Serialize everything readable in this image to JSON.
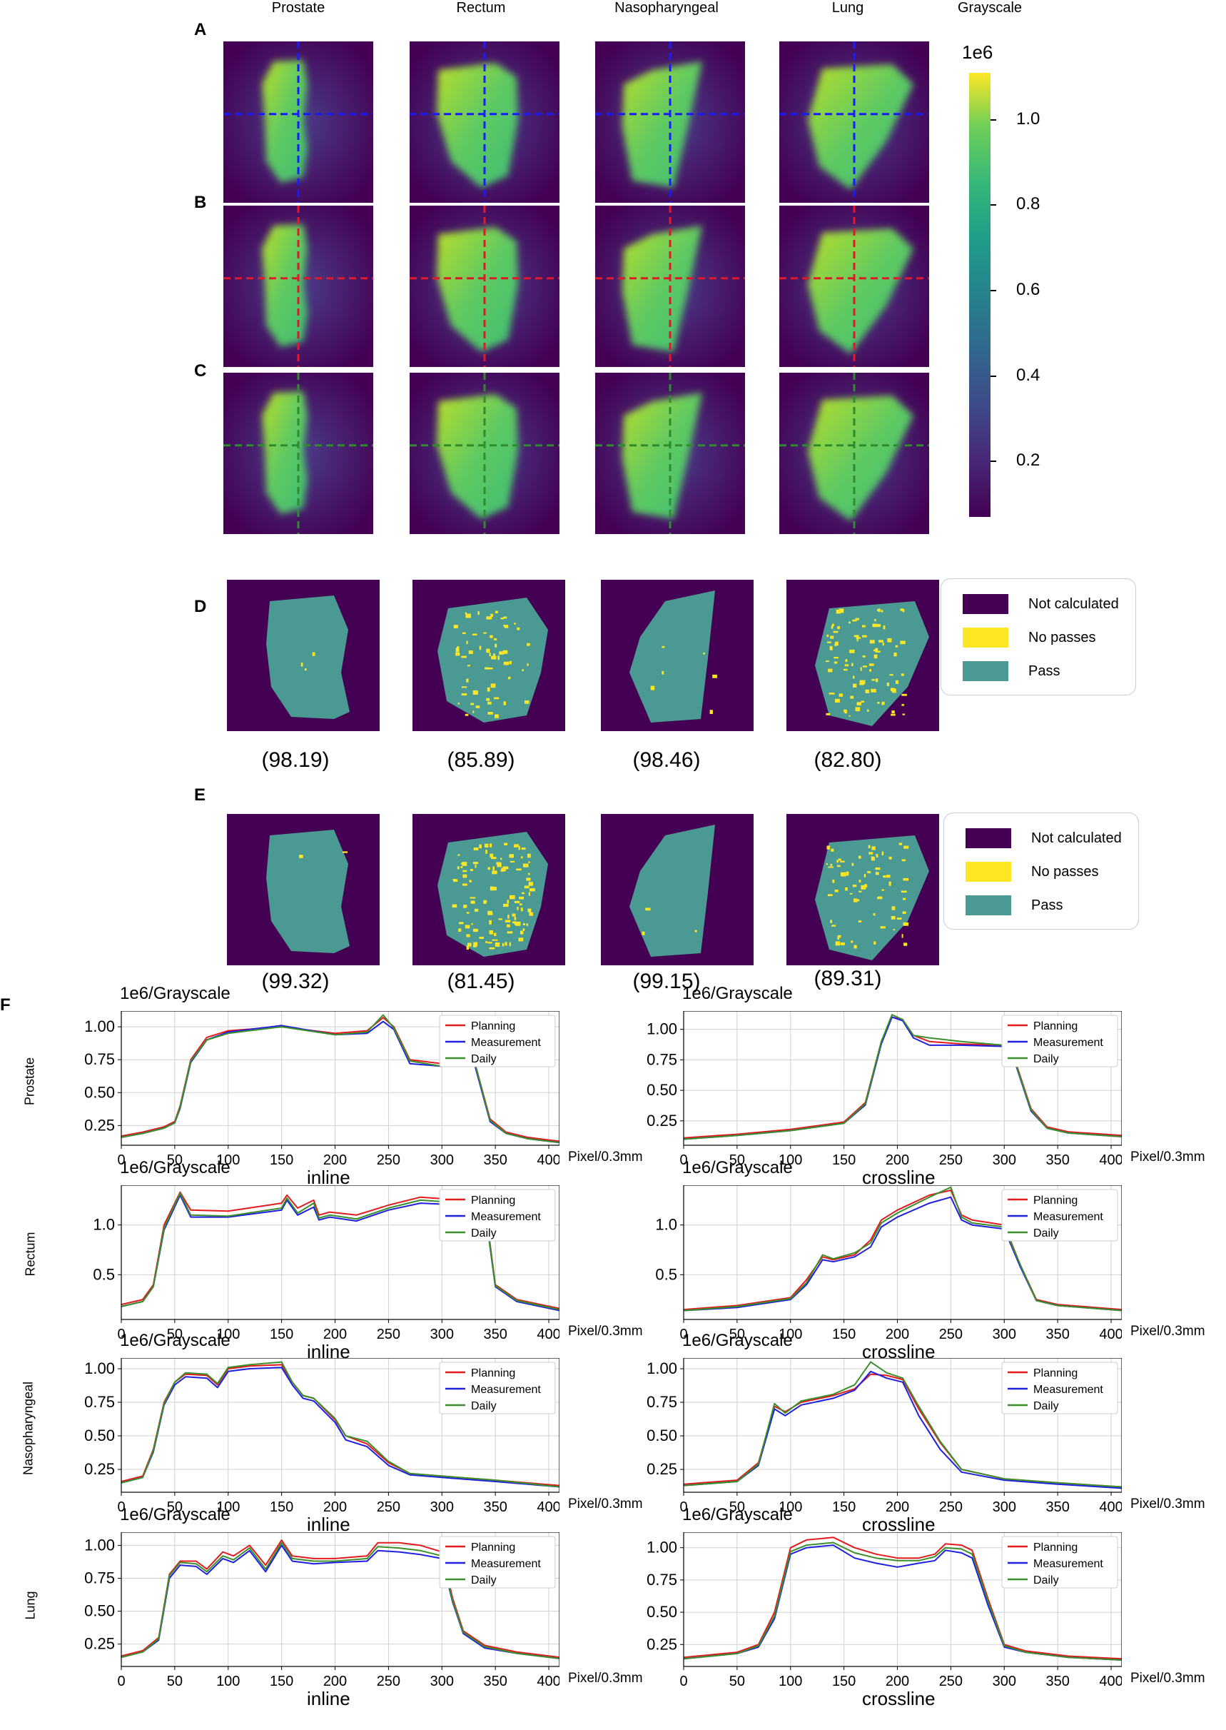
{
  "columns": [
    "Prostate",
    "Rectum",
    "Nasopharyngeal",
    "Lung"
  ],
  "colorbar": {
    "title": "Grayscale",
    "scale_label": "1e6",
    "ticks": [
      "1.0",
      "0.8",
      "0.6",
      "0.4",
      "0.2"
    ],
    "range": [
      0.07,
      1.11
    ]
  },
  "panels": {
    "A": {
      "label": "A",
      "crosshair_color": "#1a1aff"
    },
    "B": {
      "label": "B",
      "crosshair_color": "#e0192a"
    },
    "C": {
      "label": "C",
      "crosshair_color": "#2e8b2e"
    },
    "D": {
      "label": "D",
      "scores": [
        "(98.19)",
        "(85.89)",
        "(98.46)",
        "(82.80)"
      ]
    },
    "E": {
      "label": "E",
      "scores": [
        "(99.32)",
        "(81.45)",
        "(99.15)",
        "(89.31)"
      ]
    },
    "F": {
      "label": "F"
    }
  },
  "gamma_legend": {
    "items": [
      "Not calculated",
      "No passes",
      "Pass"
    ],
    "colors": [
      "#440154",
      "#fde725",
      "#4a9a93"
    ]
  },
  "colors": {
    "background": "#440154",
    "planning": "#e41a1c",
    "measurement": "#1f1fe0",
    "daily": "#3a8f2a"
  },
  "chart_data": [
    {
      "type": "line",
      "row": "Prostate",
      "title": "1e6/Grayscale",
      "xlabel": "inline",
      "xunit": "Pixel/0.3mm",
      "xlim": [
        0,
        410
      ],
      "xticks": [
        "0",
        "50",
        "100",
        "150",
        "200",
        "250",
        "300",
        "350",
        "400"
      ],
      "yticks": [
        "0.25",
        "0.50",
        "0.75",
        "1.00"
      ],
      "ytick_values": [
        0.25,
        0.5,
        0.75,
        1.0
      ],
      "ylim": [
        0.1,
        1.12
      ],
      "legend": [
        "Planning",
        "Measurement",
        "Daily"
      ],
      "x": [
        0,
        20,
        40,
        50,
        55,
        65,
        80,
        100,
        150,
        200,
        230,
        245,
        255,
        270,
        300,
        330,
        345,
        360,
        380,
        410
      ],
      "series": [
        {
          "name": "Planning",
          "values": [
            0.17,
            0.2,
            0.24,
            0.28,
            0.4,
            0.75,
            0.92,
            0.97,
            1.0,
            0.95,
            0.97,
            1.07,
            1.0,
            0.75,
            0.72,
            0.75,
            0.3,
            0.2,
            0.16,
            0.13
          ]
        },
        {
          "name": "Measurement",
          "values": [
            0.16,
            0.19,
            0.23,
            0.27,
            0.38,
            0.73,
            0.9,
            0.96,
            1.01,
            0.94,
            0.95,
            1.04,
            0.98,
            0.72,
            0.7,
            0.73,
            0.28,
            0.19,
            0.15,
            0.12
          ]
        },
        {
          "name": "Daily",
          "values": [
            0.16,
            0.19,
            0.23,
            0.27,
            0.39,
            0.74,
            0.9,
            0.95,
            1.0,
            0.94,
            0.96,
            1.09,
            0.99,
            0.74,
            0.7,
            0.75,
            0.29,
            0.19,
            0.15,
            0.12
          ]
        }
      ]
    },
    {
      "type": "line",
      "row": "Prostate",
      "title": "1e6/Grayscale",
      "xlabel": "crossline",
      "xunit": "Pixel/0.3mm",
      "xlim": [
        0,
        410
      ],
      "xticks": [
        "0",
        "50",
        "100",
        "150",
        "200",
        "250",
        "300",
        "350",
        "400"
      ],
      "yticks": [
        "0.25",
        "0.50",
        "0.75",
        "1.00"
      ],
      "ytick_values": [
        0.25,
        0.5,
        0.75,
        1.0
      ],
      "ylim": [
        0.05,
        1.15
      ],
      "legend": [
        "Planning",
        "Measurement",
        "Daily"
      ],
      "x": [
        0,
        50,
        100,
        150,
        170,
        185,
        195,
        205,
        215,
        230,
        260,
        300,
        310,
        325,
        340,
        360,
        410
      ],
      "series": [
        {
          "name": "Planning",
          "values": [
            0.11,
            0.14,
            0.18,
            0.24,
            0.4,
            0.9,
            1.1,
            1.08,
            0.95,
            0.9,
            0.88,
            0.87,
            0.75,
            0.35,
            0.2,
            0.16,
            0.13
          ]
        },
        {
          "name": "Measurement",
          "values": [
            0.1,
            0.13,
            0.17,
            0.23,
            0.38,
            0.88,
            1.1,
            1.07,
            0.93,
            0.87,
            0.87,
            0.86,
            0.73,
            0.33,
            0.19,
            0.15,
            0.12
          ]
        },
        {
          "name": "Daily",
          "values": [
            0.1,
            0.13,
            0.17,
            0.23,
            0.39,
            0.9,
            1.12,
            1.08,
            0.95,
            0.93,
            0.9,
            0.87,
            0.74,
            0.34,
            0.19,
            0.15,
            0.12
          ]
        }
      ]
    },
    {
      "type": "line",
      "row": "Rectum",
      "title": "1e6/Grayscale",
      "xlabel": "inline",
      "xunit": "Pixel/0.3mm",
      "xlim": [
        0,
        410
      ],
      "xticks": [
        "0",
        "50",
        "100",
        "150",
        "200",
        "250",
        "300",
        "350",
        "400"
      ],
      "yticks": [
        "0.5",
        "1.0"
      ],
      "ytick_values": [
        0.5,
        1.0
      ],
      "ylim": [
        0.05,
        1.4
      ],
      "legend": [
        "Planning",
        "Measurement",
        "Daily"
      ],
      "x": [
        0,
        20,
        30,
        40,
        55,
        65,
        100,
        150,
        155,
        165,
        180,
        185,
        195,
        220,
        250,
        280,
        320,
        340,
        350,
        370,
        410
      ],
      "series": [
        {
          "name": "Planning",
          "values": [
            0.2,
            0.25,
            0.4,
            1.0,
            1.33,
            1.15,
            1.14,
            1.22,
            1.3,
            1.17,
            1.25,
            1.1,
            1.13,
            1.1,
            1.2,
            1.28,
            1.25,
            1.23,
            0.4,
            0.25,
            0.16
          ]
        },
        {
          "name": "Measurement",
          "values": [
            0.18,
            0.23,
            0.38,
            0.95,
            1.3,
            1.08,
            1.08,
            1.15,
            1.25,
            1.1,
            1.18,
            1.05,
            1.08,
            1.04,
            1.15,
            1.22,
            1.2,
            1.18,
            0.38,
            0.23,
            0.14
          ]
        },
        {
          "name": "Daily",
          "values": [
            0.18,
            0.23,
            0.38,
            0.97,
            1.32,
            1.1,
            1.09,
            1.17,
            1.27,
            1.12,
            1.22,
            1.07,
            1.1,
            1.06,
            1.17,
            1.25,
            1.22,
            1.2,
            0.39,
            0.24,
            0.15
          ]
        }
      ]
    },
    {
      "type": "line",
      "row": "Rectum",
      "title": "1e6/Grayscale",
      "xlabel": "crossline",
      "xunit": "Pixel/0.3mm",
      "xlim": [
        0,
        410
      ],
      "xticks": [
        "0",
        "50",
        "100",
        "150",
        "200",
        "250",
        "300",
        "350",
        "400"
      ],
      "yticks": [
        "0.5",
        "1.0"
      ],
      "ytick_values": [
        0.5,
        1.0
      ],
      "ylim": [
        0.05,
        1.4
      ],
      "legend": [
        "Planning",
        "Measurement",
        "Daily"
      ],
      "x": [
        0,
        50,
        100,
        115,
        130,
        140,
        160,
        175,
        185,
        200,
        230,
        250,
        260,
        270,
        300,
        315,
        330,
        350,
        410
      ],
      "series": [
        {
          "name": "Planning",
          "values": [
            0.15,
            0.19,
            0.27,
            0.45,
            0.68,
            0.65,
            0.7,
            0.85,
            1.05,
            1.15,
            1.3,
            1.35,
            1.1,
            1.05,
            1.0,
            0.6,
            0.25,
            0.2,
            0.15
          ]
        },
        {
          "name": "Measurement",
          "values": [
            0.14,
            0.17,
            0.25,
            0.4,
            0.65,
            0.63,
            0.68,
            0.78,
            0.98,
            1.08,
            1.22,
            1.28,
            1.05,
            1.0,
            0.96,
            0.58,
            0.24,
            0.19,
            0.14
          ]
        },
        {
          "name": "Daily",
          "values": [
            0.14,
            0.18,
            0.26,
            0.42,
            0.7,
            0.66,
            0.72,
            0.82,
            1.02,
            1.12,
            1.28,
            1.38,
            1.08,
            1.02,
            0.98,
            0.6,
            0.24,
            0.19,
            0.14
          ]
        }
      ]
    },
    {
      "type": "line",
      "row": "Nasopharyngeal",
      "title": "1e6/Grayscale",
      "xlabel": "inline",
      "xunit": "Pixel/0.3mm",
      "xlim": [
        0,
        410
      ],
      "xticks": [
        "0",
        "50",
        "100",
        "150",
        "200",
        "250",
        "300",
        "350",
        "400"
      ],
      "yticks": [
        "0.25",
        "0.50",
        "0.75",
        "1.00"
      ],
      "ytick_values": [
        0.25,
        0.5,
        0.75,
        1.0
      ],
      "ylim": [
        0.08,
        1.08
      ],
      "legend": [
        "Planning",
        "Measurement",
        "Daily"
      ],
      "x": [
        0,
        20,
        30,
        40,
        50,
        60,
        80,
        90,
        100,
        120,
        150,
        160,
        170,
        180,
        200,
        210,
        230,
        250,
        270,
        300,
        350,
        410
      ],
      "series": [
        {
          "name": "Planning",
          "values": [
            0.16,
            0.2,
            0.4,
            0.75,
            0.9,
            0.96,
            0.95,
            0.88,
            1.0,
            1.02,
            1.03,
            0.9,
            0.8,
            0.78,
            0.62,
            0.5,
            0.44,
            0.3,
            0.22,
            0.2,
            0.17,
            0.13
          ]
        },
        {
          "name": "Measurement",
          "values": [
            0.15,
            0.19,
            0.38,
            0.73,
            0.88,
            0.94,
            0.93,
            0.86,
            0.98,
            1.0,
            1.01,
            0.88,
            0.78,
            0.76,
            0.6,
            0.47,
            0.42,
            0.28,
            0.21,
            0.19,
            0.16,
            0.12
          ]
        },
        {
          "name": "Daily",
          "values": [
            0.15,
            0.19,
            0.39,
            0.74,
            0.9,
            0.97,
            0.96,
            0.89,
            1.01,
            1.03,
            1.05,
            0.9,
            0.8,
            0.78,
            0.63,
            0.5,
            0.46,
            0.31,
            0.22,
            0.2,
            0.17,
            0.12
          ]
        }
      ]
    },
    {
      "type": "line",
      "row": "Nasopharyngeal",
      "title": "1e6/Grayscale",
      "xlabel": "crossline",
      "xunit": "Pixel/0.3mm",
      "xlim": [
        0,
        410
      ],
      "xticks": [
        "0",
        "50",
        "100",
        "150",
        "200",
        "250",
        "300",
        "350",
        "400"
      ],
      "yticks": [
        "0.25",
        "0.50",
        "0.75",
        "1.00"
      ],
      "ytick_values": [
        0.25,
        0.5,
        0.75,
        1.0
      ],
      "ylim": [
        0.08,
        1.08
      ],
      "legend": [
        "Planning",
        "Measurement",
        "Daily"
      ],
      "x": [
        0,
        50,
        70,
        85,
        95,
        110,
        140,
        160,
        175,
        190,
        205,
        220,
        240,
        260,
        300,
        350,
        410
      ],
      "series": [
        {
          "name": "Planning",
          "values": [
            0.14,
            0.17,
            0.3,
            0.72,
            0.68,
            0.75,
            0.8,
            0.85,
            0.96,
            0.95,
            0.92,
            0.7,
            0.45,
            0.25,
            0.18,
            0.15,
            0.12
          ]
        },
        {
          "name": "Measurement",
          "values": [
            0.13,
            0.16,
            0.28,
            0.7,
            0.65,
            0.73,
            0.78,
            0.84,
            0.98,
            0.93,
            0.9,
            0.65,
            0.4,
            0.23,
            0.17,
            0.14,
            0.11
          ]
        },
        {
          "name": "Daily",
          "values": [
            0.13,
            0.16,
            0.29,
            0.74,
            0.67,
            0.76,
            0.81,
            0.88,
            1.05,
            0.97,
            0.93,
            0.72,
            0.46,
            0.25,
            0.18,
            0.15,
            0.12
          ]
        }
      ]
    },
    {
      "type": "line",
      "row": "Lung",
      "title": "1e6/Grayscale",
      "xlabel": "inline",
      "xunit": "Pixel/0.3mm",
      "xlim": [
        0,
        410
      ],
      "xticks": [
        "0",
        "50",
        "100",
        "150",
        "200",
        "250",
        "300",
        "350",
        "400"
      ],
      "yticks": [
        "0.25",
        "0.50",
        "0.75",
        "1.00"
      ],
      "ytick_values": [
        0.25,
        0.5,
        0.75,
        1.0
      ],
      "ylim": [
        0.08,
        1.1
      ],
      "legend": [
        "Planning",
        "Measurement",
        "Daily"
      ],
      "x": [
        0,
        20,
        35,
        45,
        55,
        70,
        80,
        95,
        105,
        120,
        135,
        150,
        160,
        180,
        200,
        230,
        240,
        260,
        280,
        300,
        310,
        320,
        340,
        370,
        410
      ],
      "series": [
        {
          "name": "Planning",
          "values": [
            0.16,
            0.2,
            0.3,
            0.78,
            0.88,
            0.88,
            0.82,
            0.95,
            0.92,
            1.0,
            0.85,
            1.04,
            0.92,
            0.9,
            0.9,
            0.92,
            1.02,
            1.02,
            1.0,
            0.95,
            0.6,
            0.35,
            0.24,
            0.19,
            0.15
          ]
        },
        {
          "name": "Measurement",
          "values": [
            0.15,
            0.19,
            0.28,
            0.75,
            0.85,
            0.84,
            0.78,
            0.9,
            0.87,
            0.96,
            0.8,
            1.0,
            0.88,
            0.86,
            0.87,
            0.88,
            0.96,
            0.95,
            0.93,
            0.9,
            0.57,
            0.33,
            0.22,
            0.18,
            0.14
          ]
        },
        {
          "name": "Daily",
          "values": [
            0.15,
            0.19,
            0.29,
            0.77,
            0.87,
            0.86,
            0.8,
            0.92,
            0.89,
            0.98,
            0.82,
            1.02,
            0.9,
            0.88,
            0.88,
            0.9,
            0.99,
            0.98,
            0.96,
            0.92,
            0.58,
            0.34,
            0.23,
            0.18,
            0.14
          ]
        }
      ]
    },
    {
      "type": "line",
      "row": "Lung",
      "title": "1e6/Grayscale",
      "xlabel": "crossline",
      "xunit": "Pixel/0.3mm",
      "xlim": [
        0,
        410
      ],
      "xticks": [
        "0",
        "50",
        "100",
        "150",
        "200",
        "250",
        "300",
        "350",
        "400"
      ],
      "yticks": [
        "0.25",
        "0.50",
        "0.75",
        "1.00"
      ],
      "ytick_values": [
        0.25,
        0.5,
        0.75,
        1.0
      ],
      "ylim": [
        0.08,
        1.12
      ],
      "legend": [
        "Planning",
        "Measurement",
        "Daily"
      ],
      "x": [
        0,
        50,
        70,
        85,
        100,
        115,
        140,
        160,
        180,
        200,
        220,
        235,
        245,
        260,
        270,
        285,
        300,
        320,
        360,
        410
      ],
      "series": [
        {
          "name": "Planning",
          "values": [
            0.15,
            0.19,
            0.25,
            0.5,
            1.0,
            1.06,
            1.08,
            1.0,
            0.95,
            0.92,
            0.92,
            0.95,
            1.03,
            1.02,
            0.98,
            0.6,
            0.25,
            0.2,
            0.16,
            0.14
          ]
        },
        {
          "name": "Measurement",
          "values": [
            0.14,
            0.18,
            0.23,
            0.45,
            0.95,
            1.0,
            1.02,
            0.92,
            0.88,
            0.85,
            0.88,
            0.9,
            0.98,
            0.96,
            0.92,
            0.55,
            0.23,
            0.19,
            0.15,
            0.13
          ]
        },
        {
          "name": "Daily",
          "values": [
            0.14,
            0.18,
            0.24,
            0.47,
            0.97,
            1.02,
            1.04,
            0.96,
            0.92,
            0.9,
            0.9,
            0.93,
            1.0,
            0.99,
            0.95,
            0.58,
            0.24,
            0.19,
            0.15,
            0.13
          ]
        }
      ]
    }
  ]
}
